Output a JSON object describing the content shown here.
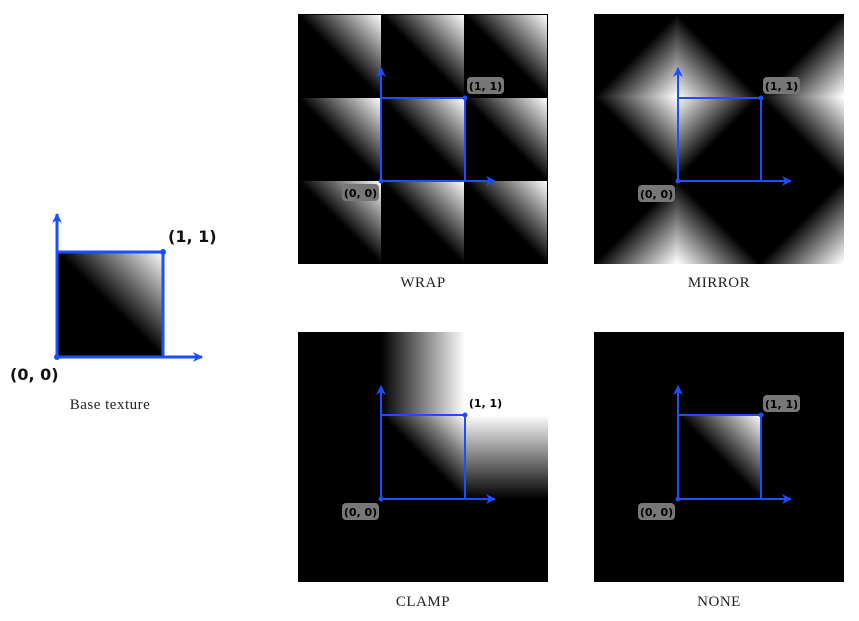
{
  "figure": {
    "base": {
      "caption": "Base texture",
      "origin_label": "(0, 0)",
      "corner_label": "(1, 1)"
    },
    "modes": [
      {
        "id": "wrap",
        "caption": "WRAP",
        "origin_label": "(0, 0)",
        "corner_label": "(1, 1)"
      },
      {
        "id": "mirror",
        "caption": "MIRROR",
        "origin_label": "(0, 0)",
        "corner_label": "(1, 1)"
      },
      {
        "id": "clamp",
        "caption": "CLAMP",
        "origin_label": "(0, 0)",
        "corner_label": "(1, 1)"
      },
      {
        "id": "none",
        "caption": "NONE",
        "origin_label": "(0, 0)",
        "corner_label": "(1, 1)"
      }
    ],
    "colors": {
      "axis": "#1a4fff",
      "texture_dark": "#000000",
      "texture_light": "#ffffff",
      "label_badge": "#777777"
    }
  }
}
